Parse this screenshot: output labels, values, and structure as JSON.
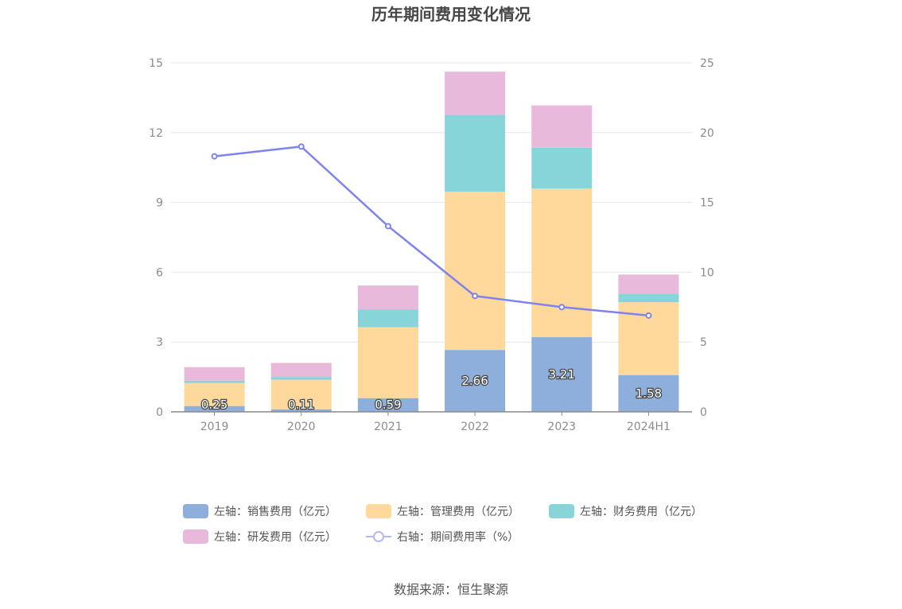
{
  "chart_data": {
    "type": "bar",
    "title": "历年期间费用变化情况",
    "categories": [
      "2019",
      "2020",
      "2021",
      "2022",
      "2023",
      "2024H1"
    ],
    "left_axis": {
      "ylim": [
        0,
        15
      ],
      "ticks": [
        "0",
        "3",
        "6",
        "9",
        "12",
        "15"
      ],
      "tick_values": [
        0,
        3,
        6,
        9,
        12,
        15
      ]
    },
    "right_axis": {
      "ylim": [
        0,
        25
      ],
      "ticks": [
        "0",
        "5",
        "10",
        "15",
        "20",
        "25"
      ],
      "tick_values": [
        0,
        5,
        10,
        15,
        20,
        25
      ]
    },
    "series": [
      {
        "name": "左轴：销售费用（亿元）",
        "kind": "bar",
        "color": "#8eaedb",
        "values": [
          0.25,
          0.11,
          0.59,
          2.66,
          3.21,
          1.58
        ],
        "labels": [
          "0.25",
          "0.11",
          "0.59",
          "2.66",
          "3.21",
          "1.58"
        ]
      },
      {
        "name": "左轴：管理费用（亿元）",
        "kind": "bar",
        "color": "#fed99b",
        "values": [
          0.99,
          1.27,
          3.05,
          6.8,
          6.39,
          3.13
        ]
      },
      {
        "name": "左轴：财务费用（亿元）",
        "kind": "bar",
        "color": "#88d5d9",
        "values": [
          0.1,
          0.12,
          0.75,
          3.3,
          1.75,
          0.37
        ]
      },
      {
        "name": "左轴：研发费用（亿元）",
        "kind": "bar",
        "color": "#e8b9db",
        "values": [
          0.58,
          0.6,
          1.04,
          1.86,
          1.82,
          0.82
        ]
      },
      {
        "name": "右轴：期间费用率（%）",
        "kind": "line",
        "color": "#7f83f0",
        "values": [
          18.3,
          19.0,
          13.3,
          8.3,
          7.5,
          6.9
        ]
      }
    ],
    "legend": {
      "placement": "bottom"
    }
  },
  "source": "数据来源：恒生聚源"
}
